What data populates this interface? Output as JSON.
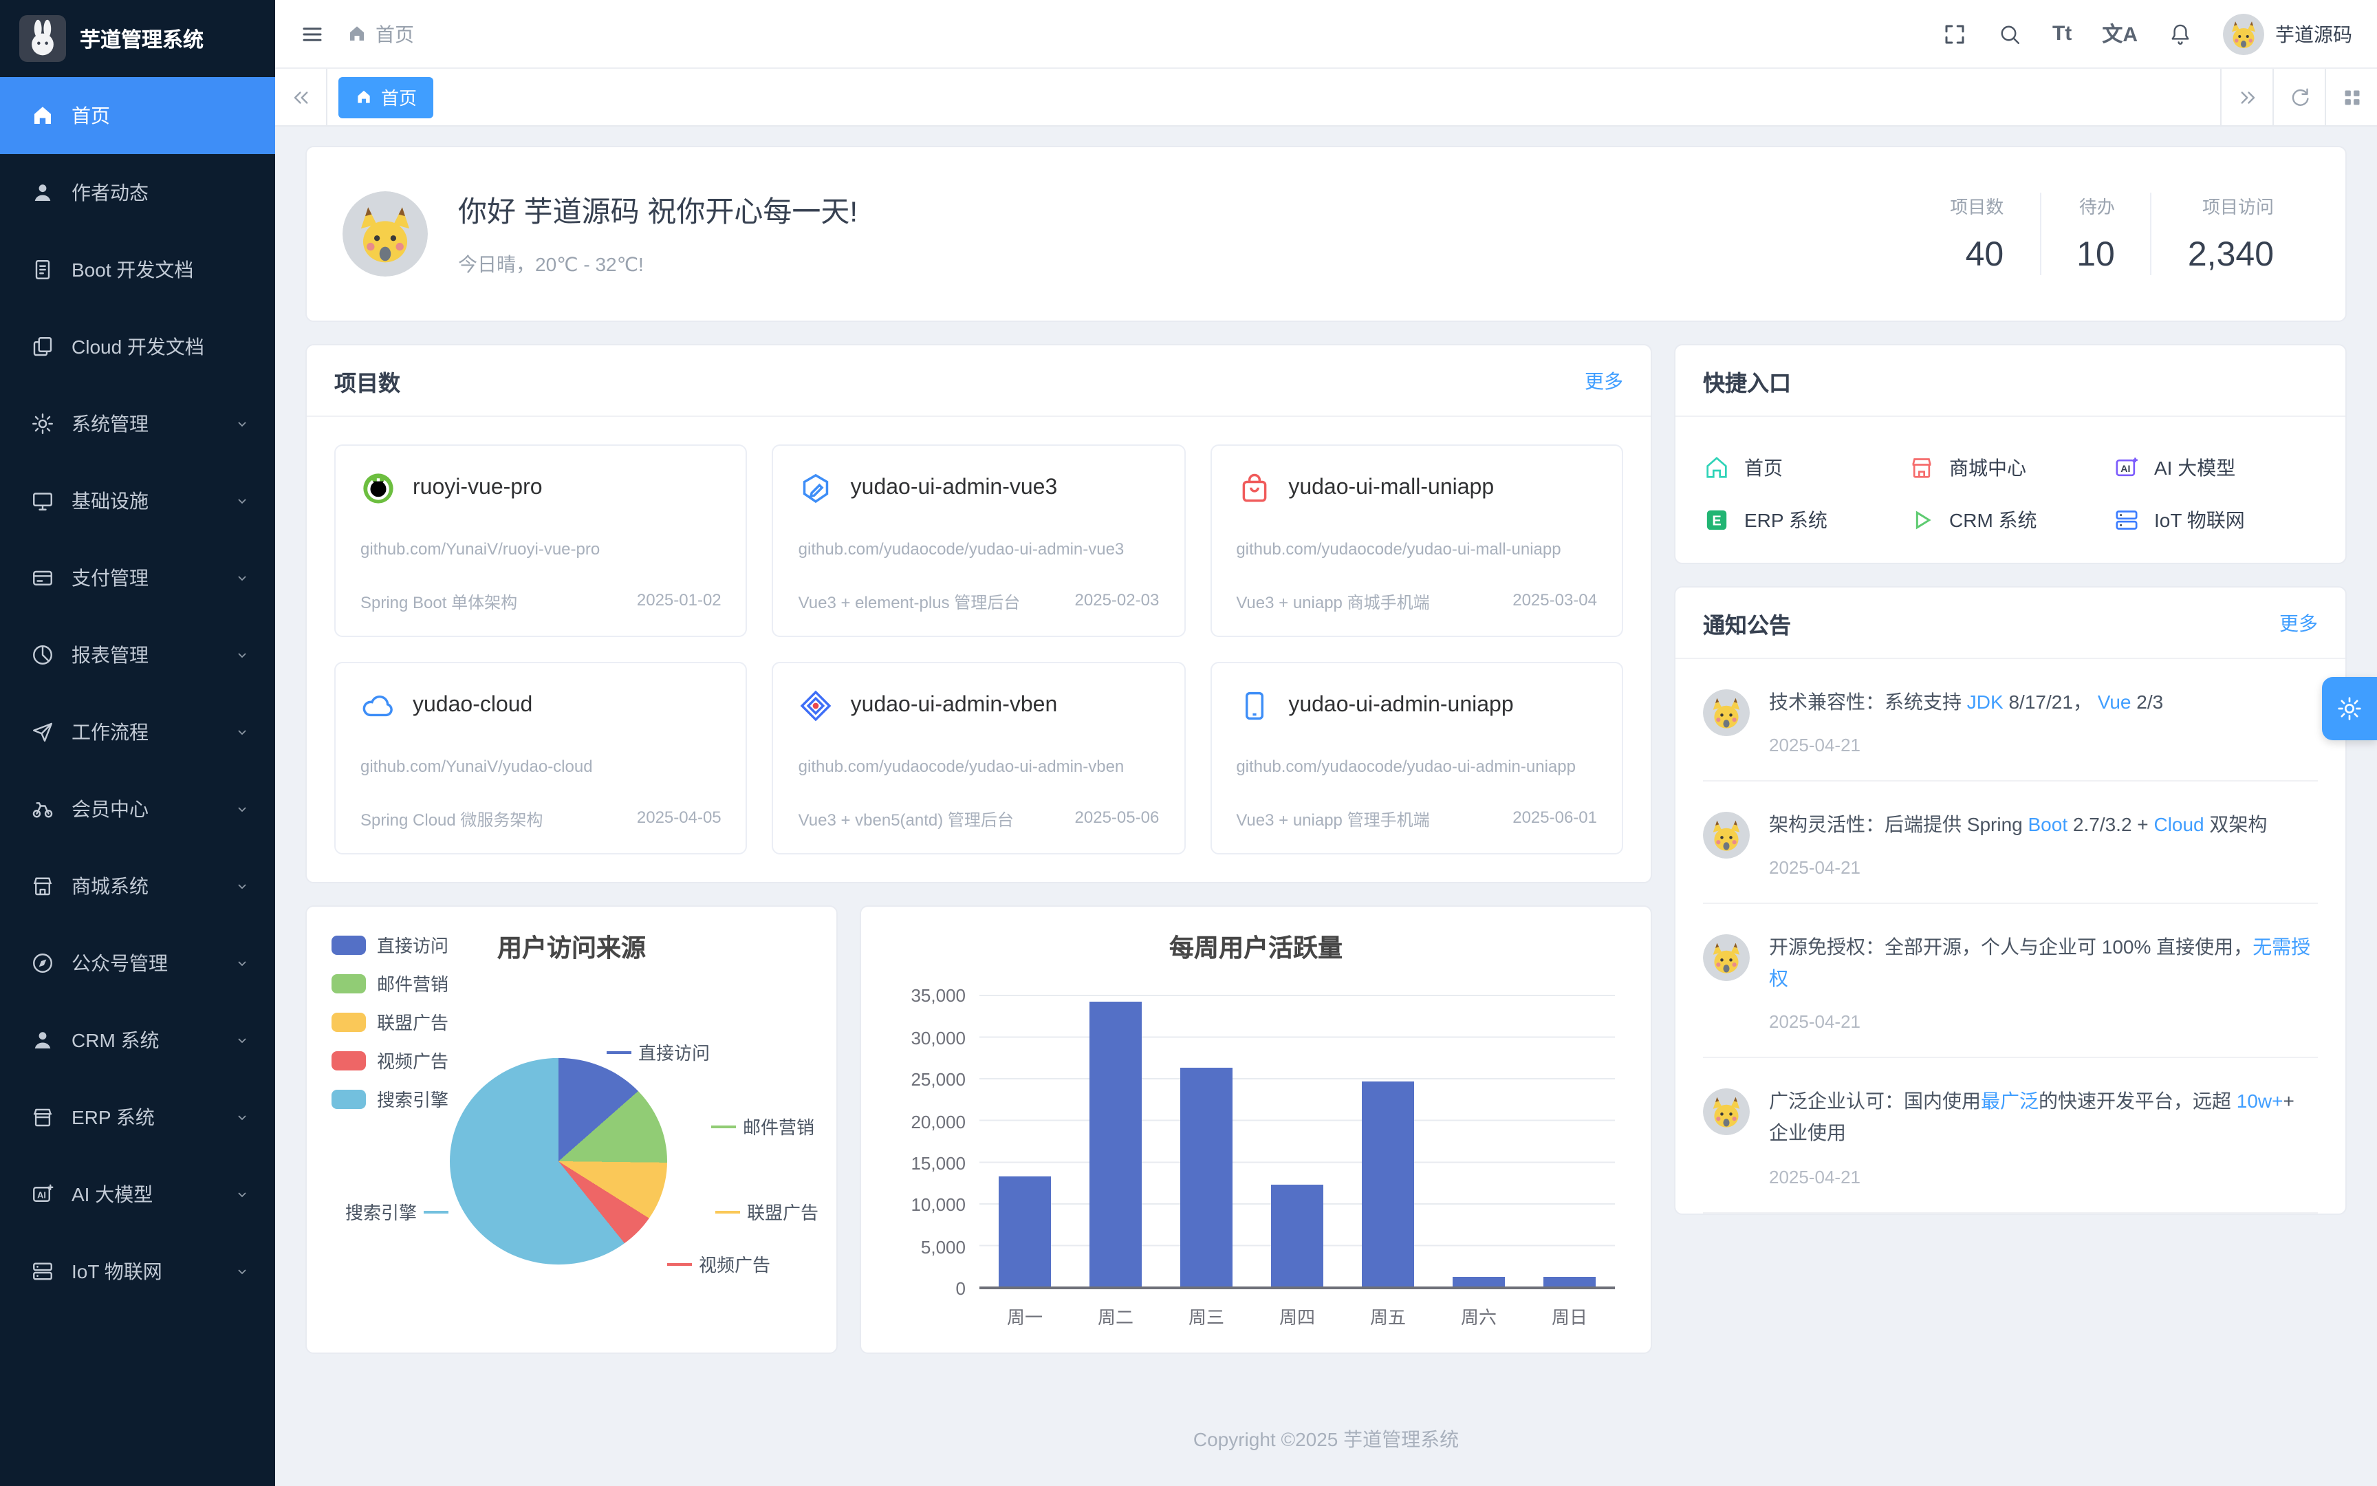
{
  "app": {
    "title": "芋道管理系统",
    "user": "芋道源码"
  },
  "sidebar": {
    "items": [
      {
        "label": "首页",
        "icon": "home-icon",
        "active": true
      },
      {
        "label": "作者动态",
        "icon": "user-icon"
      },
      {
        "label": "Boot 开发文档",
        "icon": "document-icon"
      },
      {
        "label": "Cloud 开发文档",
        "icon": "documents-icon"
      },
      {
        "label": "系统管理",
        "icon": "gear-icon",
        "expandable": true
      },
      {
        "label": "基础设施",
        "icon": "monitor-icon",
        "expandable": true
      },
      {
        "label": "支付管理",
        "icon": "payment-icon",
        "expandable": true
      },
      {
        "label": "报表管理",
        "icon": "report-icon",
        "expandable": true
      },
      {
        "label": "工作流程",
        "icon": "workflow-icon",
        "expandable": true
      },
      {
        "label": "会员中心",
        "icon": "bike-icon",
        "expandable": true
      },
      {
        "label": "商城系统",
        "icon": "shop-icon",
        "expandable": true
      },
      {
        "label": "公众号管理",
        "icon": "compass-icon",
        "expandable": true
      },
      {
        "label": "CRM 系统",
        "icon": "person-icon",
        "expandable": true
      },
      {
        "label": "ERP 系统",
        "icon": "store-icon",
        "expandable": true
      },
      {
        "label": "AI 大模型",
        "icon": "ai-icon",
        "expandable": true
      },
      {
        "label": "IoT 物联网",
        "icon": "server-icon",
        "expandable": true
      }
    ]
  },
  "header": {
    "breadcrumb": "首页",
    "icons": [
      "fullscreen-icon",
      "search-icon",
      "font-size-icon",
      "language-icon",
      "bell-icon"
    ],
    "font_size_glyph": "Tt",
    "language_glyph": "文A"
  },
  "tabs": {
    "active": "首页"
  },
  "banner": {
    "greeting": "你好 芋道源码 祝你开心每一天!",
    "weather": "今日晴，20℃ - 32℃!",
    "stats": [
      {
        "label": "项目数",
        "value": "40"
      },
      {
        "label": "待办",
        "value": "10"
      },
      {
        "label": "项目访问",
        "value": "2,340"
      }
    ]
  },
  "projects": {
    "title": "项目数",
    "more": "更多",
    "items": [
      {
        "name": "ruoyi-vue-pro",
        "icon": "spring-icon",
        "url": "github.com/YunaiV/ruoyi-vue-pro",
        "desc": "Spring Boot 单体架构",
        "date": "2025-01-02"
      },
      {
        "name": "yudao-ui-admin-vue3",
        "icon": "vue3-icon",
        "url": "github.com/yudaocode/yudao-ui-admin-vue3",
        "desc": "Vue3 + element-plus 管理后台",
        "date": "2025-02-03"
      },
      {
        "name": "yudao-ui-mall-uniapp",
        "icon": "mall-bag-icon",
        "url": "github.com/yudaocode/yudao-ui-mall-uniapp",
        "desc": "Vue3 + uniapp 商城手机端",
        "date": "2025-03-04"
      },
      {
        "name": "yudao-cloud",
        "icon": "cloud-icon",
        "url": "github.com/YunaiV/yudao-cloud",
        "desc": "Spring Cloud 微服务架构",
        "date": "2025-04-05"
      },
      {
        "name": "yudao-ui-admin-vben",
        "icon": "vben-icon",
        "url": "github.com/yudaocode/yudao-ui-admin-vben",
        "desc": "Vue3 + vben5(antd) 管理后台",
        "date": "2025-05-06"
      },
      {
        "name": "yudao-ui-admin-uniapp",
        "icon": "phone-icon",
        "url": "github.com/yudaocode/yudao-ui-admin-uniapp",
        "desc": "Vue3 + uniapp 管理手机端",
        "date": "2025-06-01"
      }
    ]
  },
  "quick": {
    "title": "快捷入口",
    "items": [
      {
        "label": "首页",
        "icon": "home-icon",
        "color": "#2ed3b7"
      },
      {
        "label": "商城中心",
        "icon": "shop-icon",
        "color": "#f56c6c"
      },
      {
        "label": "AI 大模型",
        "icon": "ai-icon",
        "color": "#7c5cfc"
      },
      {
        "label": "ERP 系统",
        "icon": "erp-icon",
        "color": "#21b573"
      },
      {
        "label": "CRM 系统",
        "icon": "play-icon",
        "color": "#5ecb71"
      },
      {
        "label": "IoT 物联网",
        "icon": "server-icon",
        "color": "#3b7cff"
      }
    ]
  },
  "notices": {
    "title": "通知公告",
    "more": "更多",
    "items": [
      {
        "pre": "技术兼容性：系统支持 ",
        "link1": "JDK",
        "mid": " 8/17/21， ",
        "link2": "Vue",
        "post": " 2/3",
        "date": "2025-04-21"
      },
      {
        "pre": "架构灵活性：后端提供 Spring ",
        "link1": "Boot",
        "mid": " 2.7/3.2 + ",
        "link2": "Cloud",
        "post": " 双架构",
        "date": "2025-04-21"
      },
      {
        "pre": "开源免授权：全部开源，个人与企业可 100% 直接使用，",
        "link1": "无需授权",
        "mid": "",
        "link2": "",
        "post": "",
        "date": "2025-04-21"
      },
      {
        "pre": "广泛企业认可：国内使用",
        "link1": "最广泛",
        "mid": "的快速开发平台，远超 ",
        "link2": "10w+",
        "post": "+ 企业使用",
        "date": "2025-04-21"
      }
    ]
  },
  "footer": {
    "copyright": "Copyright ©2025 芋道管理系统"
  },
  "chart_data": [
    {
      "type": "pie",
      "title": "用户访问来源",
      "legend": [
        "直接访问",
        "邮件营销",
        "联盟广告",
        "视频广告",
        "搜索引擎"
      ],
      "share_pct": [
        13.1,
        12.1,
        9.1,
        5.3,
        60.4
      ],
      "colors": [
        "#5470c6",
        "#91cc75",
        "#fac858",
        "#ee6666",
        "#73c0de"
      ],
      "legend_position": "top-left"
    },
    {
      "type": "bar",
      "title": "每周用户活跃量",
      "categories": [
        "周一",
        "周二",
        "周三",
        "周四",
        "周五",
        "周六",
        "周日"
      ],
      "values": [
        13200,
        34200,
        26300,
        12300,
        24700,
        1300,
        1300
      ],
      "ylim": [
        0,
        35000
      ],
      "yticks": [
        "35,000",
        "30,000",
        "25,000",
        "20,000",
        "15,000",
        "10,000",
        "5,000",
        "0"
      ],
      "bar_color": "#5470c6",
      "grid": true
    }
  ]
}
